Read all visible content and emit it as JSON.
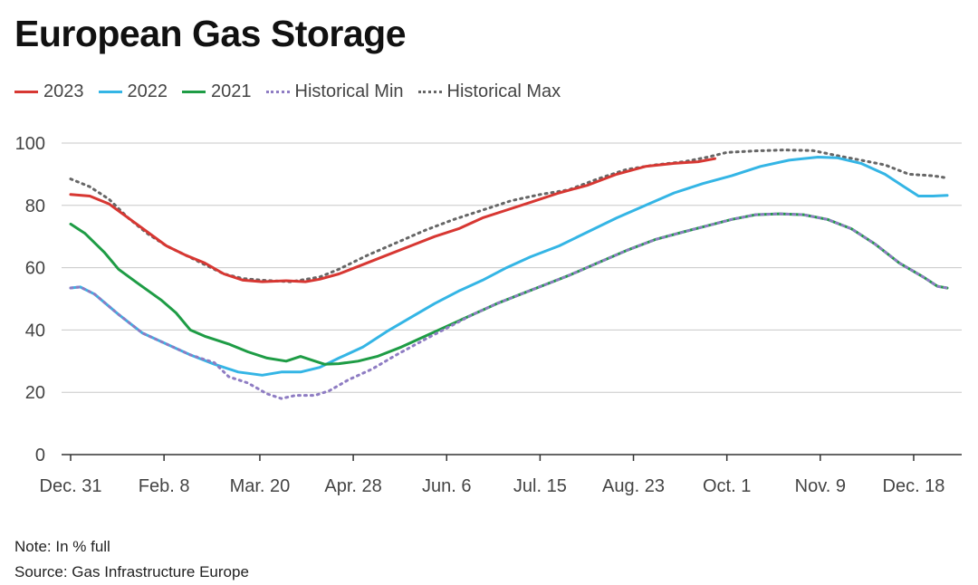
{
  "header": {
    "title": "European Gas Storage"
  },
  "footer": {
    "note": "Note: In % full",
    "source": "Source: Gas Infrastructure Europe"
  },
  "chart_data": {
    "type": "line",
    "title": "European Gas Storage",
    "xlabel": "",
    "ylabel": "In % full",
    "ylim": [
      0,
      100
    ],
    "yticks": [
      0,
      20,
      40,
      60,
      80,
      100
    ],
    "x_range_days": [
      0,
      366
    ],
    "x_ticks": [
      {
        "day": 0,
        "label": "Dec. 31"
      },
      {
        "day": 39,
        "label": "Feb. 8"
      },
      {
        "day": 79,
        "label": "Mar. 20"
      },
      {
        "day": 118,
        "label": "Apr. 28"
      },
      {
        "day": 157,
        "label": "Jun. 6"
      },
      {
        "day": 196,
        "label": "Jul. 15"
      },
      {
        "day": 235,
        "label": "Aug. 23"
      },
      {
        "day": 274,
        "label": "Oct. 1"
      },
      {
        "day": 313,
        "label": "Nov. 9"
      },
      {
        "day": 352,
        "label": "Dec. 18"
      }
    ],
    "grid": true,
    "legend_position": "top-left",
    "series": [
      {
        "name": "Historical Max",
        "color": "#666666",
        "style": "dotted",
        "points": [
          [
            0,
            88.5
          ],
          [
            8,
            86
          ],
          [
            16,
            82
          ],
          [
            24,
            76
          ],
          [
            32,
            71
          ],
          [
            40,
            67
          ],
          [
            48,
            64
          ],
          [
            56,
            61
          ],
          [
            64,
            58
          ],
          [
            72,
            56.5
          ],
          [
            80,
            56
          ],
          [
            92,
            55.5
          ],
          [
            104,
            57
          ],
          [
            112,
            59.5
          ],
          [
            124,
            64
          ],
          [
            136,
            68
          ],
          [
            148,
            72
          ],
          [
            160,
            75.5
          ],
          [
            172,
            78.5
          ],
          [
            184,
            81.5
          ],
          [
            196,
            83.5
          ],
          [
            208,
            85
          ],
          [
            220,
            88.5
          ],
          [
            232,
            91.5
          ],
          [
            244,
            93
          ],
          [
            256,
            94
          ],
          [
            266,
            95.5
          ],
          [
            274,
            97
          ],
          [
            286,
            97.5
          ],
          [
            298,
            97.8
          ],
          [
            310,
            97.6
          ],
          [
            320,
            96
          ],
          [
            330,
            94.5
          ],
          [
            340,
            93
          ],
          [
            350,
            90
          ],
          [
            360,
            89.5
          ],
          [
            366,
            88.8
          ]
        ]
      },
      {
        "name": "2023",
        "color": "#d73732",
        "style": "solid",
        "points": [
          [
            0,
            83.5
          ],
          [
            8,
            83
          ],
          [
            16,
            80.5
          ],
          [
            24,
            76
          ],
          [
            32,
            71.5
          ],
          [
            40,
            67
          ],
          [
            48,
            64
          ],
          [
            56,
            61.5
          ],
          [
            64,
            58
          ],
          [
            72,
            56
          ],
          [
            80,
            55.5
          ],
          [
            90,
            55.8
          ],
          [
            98,
            55.5
          ],
          [
            104,
            56.3
          ],
          [
            112,
            58
          ],
          [
            122,
            61
          ],
          [
            132,
            64
          ],
          [
            142,
            67
          ],
          [
            152,
            70
          ],
          [
            162,
            72.5
          ],
          [
            172,
            76
          ],
          [
            182,
            78.5
          ],
          [
            192,
            81
          ],
          [
            204,
            84
          ],
          [
            216,
            86.5
          ],
          [
            228,
            90
          ],
          [
            240,
            92.5
          ],
          [
            252,
            93.5
          ],
          [
            262,
            94
          ],
          [
            269,
            95
          ]
        ]
      },
      {
        "name": "2022",
        "color": "#34b5e5",
        "style": "solid",
        "points": [
          [
            0,
            53.5
          ],
          [
            4,
            53.8
          ],
          [
            10,
            51.5
          ],
          [
            20,
            45
          ],
          [
            30,
            39
          ],
          [
            40,
            35.5
          ],
          [
            50,
            32
          ],
          [
            60,
            29
          ],
          [
            70,
            26.5
          ],
          [
            80,
            25.5
          ],
          [
            88,
            26.5
          ],
          [
            96,
            26.5
          ],
          [
            104,
            28
          ],
          [
            112,
            31
          ],
          [
            122,
            34.5
          ],
          [
            132,
            39.5
          ],
          [
            142,
            44
          ],
          [
            152,
            48.5
          ],
          [
            162,
            52.5
          ],
          [
            172,
            56
          ],
          [
            182,
            60
          ],
          [
            192,
            63.5
          ],
          [
            204,
            67
          ],
          [
            216,
            71.5
          ],
          [
            228,
            76
          ],
          [
            240,
            80
          ],
          [
            252,
            84
          ],
          [
            264,
            87
          ],
          [
            276,
            89.5
          ],
          [
            288,
            92.5
          ],
          [
            300,
            94.5
          ],
          [
            312,
            95.5
          ],
          [
            320,
            95.3
          ],
          [
            330,
            93.5
          ],
          [
            340,
            90
          ],
          [
            348,
            86
          ],
          [
            354,
            83
          ],
          [
            360,
            83
          ],
          [
            366,
            83.2
          ]
        ]
      },
      {
        "name": "2021",
        "color": "#1e9c45",
        "style": "solid",
        "points": [
          [
            0,
            74
          ],
          [
            6,
            71
          ],
          [
            14,
            65
          ],
          [
            20,
            59.5
          ],
          [
            28,
            55
          ],
          [
            38,
            49.5
          ],
          [
            44,
            45.5
          ],
          [
            50,
            40
          ],
          [
            56,
            38
          ],
          [
            66,
            35.5
          ],
          [
            74,
            33
          ],
          [
            82,
            31
          ],
          [
            90,
            30
          ],
          [
            96,
            31.5
          ],
          [
            100,
            30.5
          ],
          [
            106,
            29
          ],
          [
            112,
            29.2
          ],
          [
            120,
            30
          ],
          [
            128,
            31.5
          ],
          [
            138,
            34.5
          ],
          [
            148,
            38
          ],
          [
            158,
            41.5
          ],
          [
            168,
            45
          ],
          [
            178,
            48.5
          ],
          [
            188,
            51.5
          ],
          [
            198,
            54.5
          ],
          [
            208,
            57.5
          ],
          [
            220,
            61.5
          ],
          [
            232,
            65.5
          ],
          [
            244,
            69
          ],
          [
            256,
            71.5
          ],
          [
            266,
            73.5
          ],
          [
            276,
            75.5
          ],
          [
            286,
            77
          ],
          [
            296,
            77.3
          ],
          [
            306,
            77
          ],
          [
            316,
            75.5
          ],
          [
            326,
            72.5
          ],
          [
            336,
            67.5
          ],
          [
            346,
            61.5
          ],
          [
            356,
            57
          ],
          [
            362,
            54
          ],
          [
            366,
            53.5
          ]
        ]
      },
      {
        "name": "Historical Min",
        "color": "#8e7cc3",
        "style": "dotted",
        "points": [
          [
            0,
            53.5
          ],
          [
            4,
            53.8
          ],
          [
            10,
            51.5
          ],
          [
            20,
            45
          ],
          [
            30,
            39
          ],
          [
            40,
            35.5
          ],
          [
            50,
            32
          ],
          [
            60,
            29.5
          ],
          [
            66,
            25
          ],
          [
            74,
            23
          ],
          [
            82,
            19.5
          ],
          [
            88,
            18
          ],
          [
            94,
            19
          ],
          [
            102,
            19
          ],
          [
            108,
            20.5
          ],
          [
            116,
            24
          ],
          [
            126,
            27.5
          ],
          [
            136,
            32
          ],
          [
            148,
            37
          ],
          [
            158,
            41
          ],
          [
            168,
            45
          ],
          [
            178,
            48.5
          ],
          [
            188,
            51.5
          ],
          [
            198,
            54.5
          ],
          [
            208,
            57.5
          ],
          [
            220,
            61.5
          ],
          [
            232,
            65.5
          ],
          [
            244,
            69
          ],
          [
            256,
            71.5
          ],
          [
            266,
            73.5
          ],
          [
            276,
            75.5
          ],
          [
            286,
            77
          ],
          [
            296,
            77.3
          ],
          [
            306,
            77
          ],
          [
            316,
            75.5
          ],
          [
            326,
            72.5
          ],
          [
            336,
            67.5
          ],
          [
            346,
            61.5
          ],
          [
            356,
            57
          ],
          [
            362,
            54
          ],
          [
            366,
            53.5
          ]
        ]
      }
    ]
  }
}
